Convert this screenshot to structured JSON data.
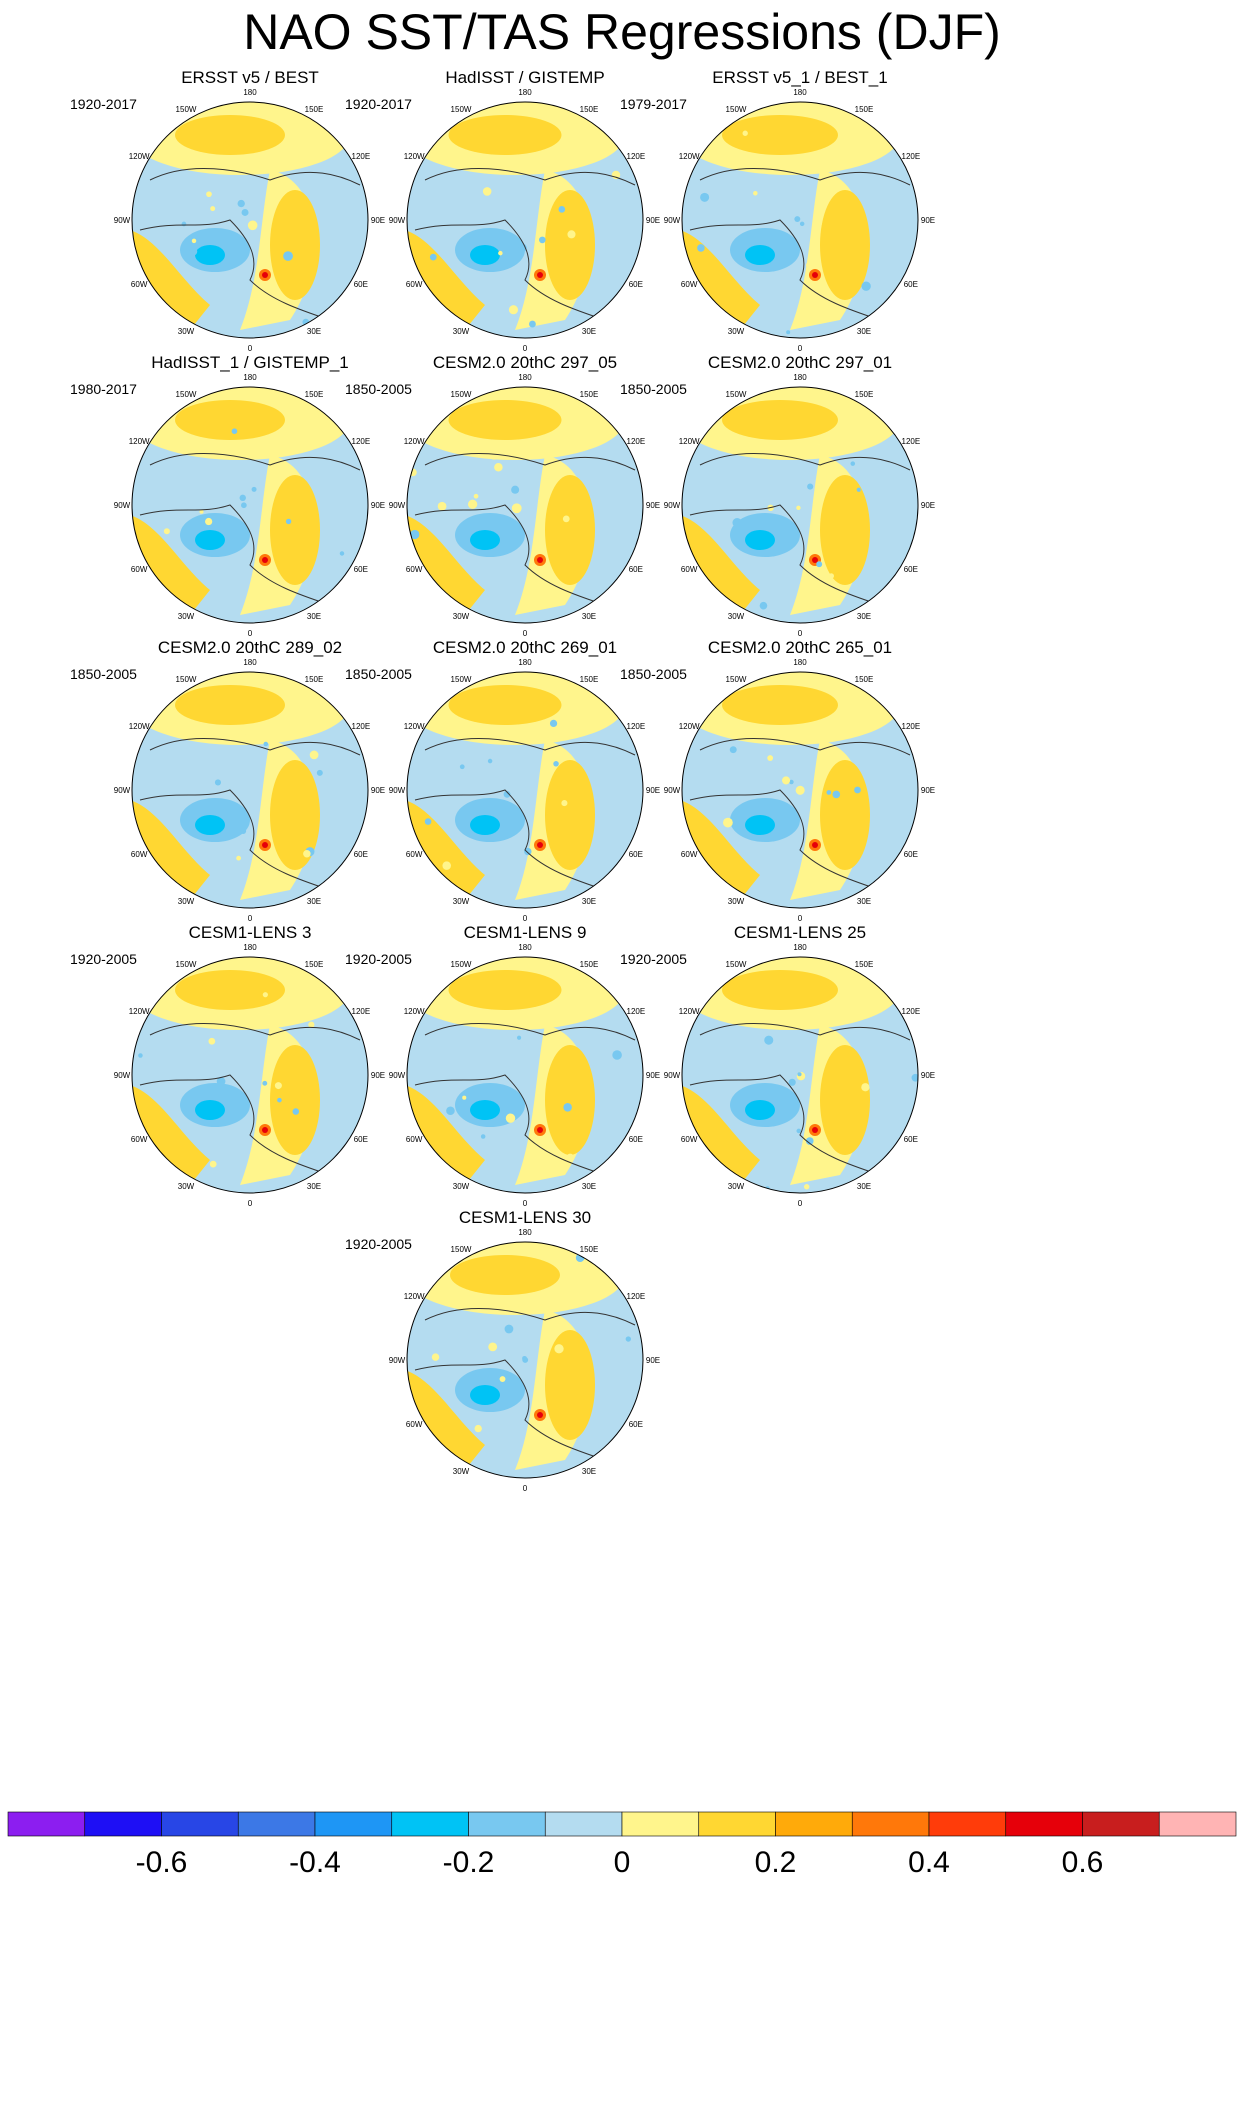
{
  "title": "NAO SST/TAS Regressions (DJF)",
  "chart_data": {
    "type": "heatmap",
    "projection": "north polar stereographic",
    "variable": "SST/TAS regression on NAO index (DJF)",
    "longitude_labels": [
      "180",
      "150E",
      "120E",
      "90E",
      "60E",
      "30E",
      "0",
      "30W",
      "60W",
      "90W",
      "120W",
      "150W"
    ],
    "panels": [
      {
        "title": "ERSST v5 / BEST",
        "period": "1920-2017"
      },
      {
        "title": "HadISST / GISTEMP",
        "period": "1920-2017"
      },
      {
        "title": "ERSST v5_1 / BEST_1",
        "period": "1979-2017"
      },
      {
        "title": "HadISST_1 / GISTEMP_1",
        "period": "1980-2017"
      },
      {
        "title": "CESM2.0 20thC 297_05",
        "period": "1850-2005"
      },
      {
        "title": "CESM2.0 20thC 297_01",
        "period": "1850-2005"
      },
      {
        "title": "CESM2.0 20thC 289_02",
        "period": "1850-2005"
      },
      {
        "title": "CESM2.0 20thC 269_01",
        "period": "1850-2005"
      },
      {
        "title": "CESM2.0 20thC 265_01",
        "period": "1850-2005"
      },
      {
        "title": "CESM1-LENS 3",
        "period": "1920-2005"
      },
      {
        "title": "CESM1-LENS 9",
        "period": "1920-2005"
      },
      {
        "title": "CESM1-LENS 25",
        "period": "1920-2005"
      },
      {
        "title": "CESM1-LENS 30",
        "period": "1920-2005"
      }
    ],
    "colorbar": {
      "levels": [
        -0.7,
        -0.6,
        -0.5,
        -0.4,
        -0.3,
        -0.2,
        -0.1,
        0,
        0.1,
        0.2,
        0.3,
        0.4,
        0.5,
        0.6,
        0.7
      ],
      "tick_labels": [
        "-0.6",
        "-0.4",
        "-0.2",
        "0",
        "0.2",
        "0.4",
        "0.6"
      ],
      "tick_values": [
        -0.6,
        -0.4,
        -0.2,
        0,
        0.2,
        0.4,
        0.6
      ],
      "colors": [
        "#8c1ef0",
        "#1e0ff5",
        "#2846e6",
        "#3c78e6",
        "#1e96f5",
        "#00c3f5",
        "#78c8f0",
        "#b4dcf0",
        "#fff58c",
        "#ffd732",
        "#ffaa0a",
        "#ff780a",
        "#ff3c0a",
        "#e6000a",
        "#c81e1e",
        "#ffb4b4"
      ]
    }
  }
}
